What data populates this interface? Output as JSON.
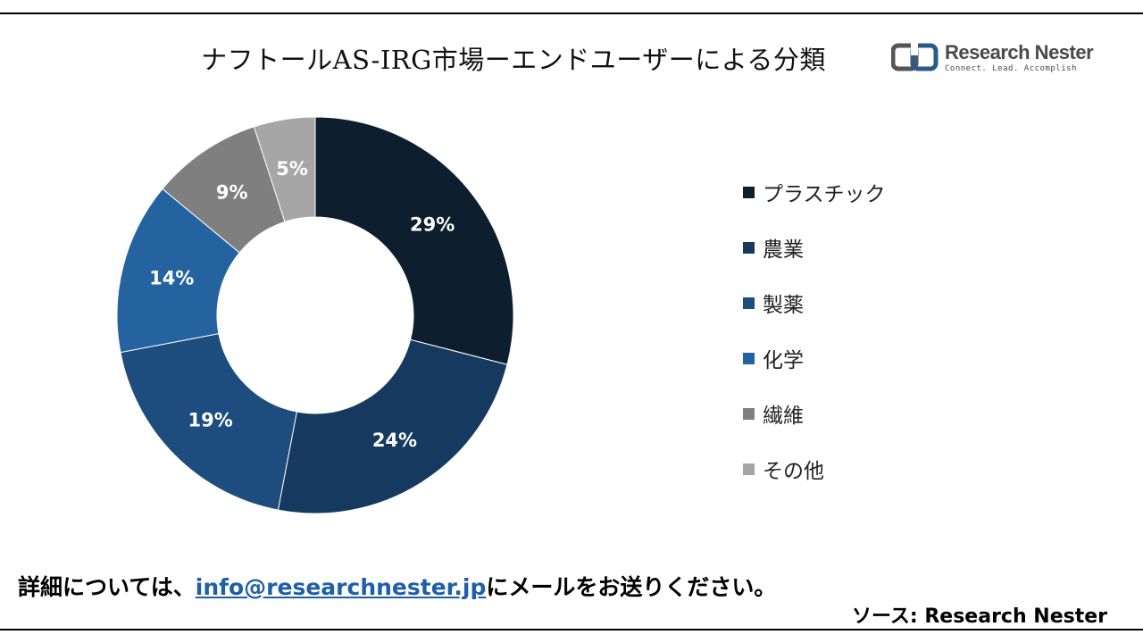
{
  "title": "ナフトールAS-IRG市場ーエンドユーザーによる分類",
  "logo": {
    "name": "Research Nester",
    "tagline": "Connect. Lead. Accomplish"
  },
  "chart_data": {
    "type": "pie",
    "style": "donut",
    "categories": [
      "プラスチック",
      "農業",
      "製薬",
      "化学",
      "繊維",
      "その他"
    ],
    "values": [
      29,
      24,
      19,
      14,
      9,
      5
    ],
    "labels": [
      "29%",
      "24%",
      "19%",
      "14%",
      "9%",
      "5%"
    ],
    "colors": [
      "#0d1e2f",
      "#163a5f",
      "#1d4c7e",
      "#2563a0",
      "#7f7f7f",
      "#a6a6a6"
    ],
    "legend_position": "right"
  },
  "footer": {
    "prefix": "詳細については、",
    "link": "info@researchnester.jp",
    "suffix": "にメールをお送りください。"
  },
  "source": "ソース: Research Nester"
}
